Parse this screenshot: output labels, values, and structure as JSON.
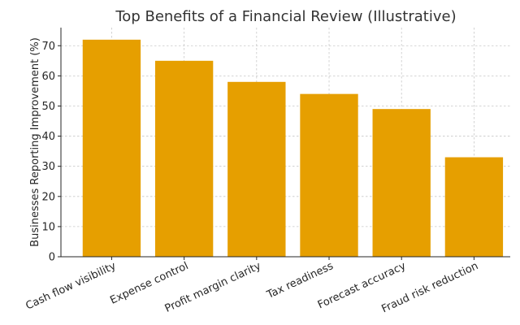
{
  "chart_data": {
    "type": "bar",
    "title": "Top Benefits of a Financial Review (Illustrative)",
    "xlabel": "",
    "ylabel": "Businesses Reporting Improvement (%)",
    "categories": [
      "Cash flow visibility",
      "Expense control",
      "Profit margin clarity",
      "Tax readiness",
      "Forecast accuracy",
      "Fraud risk reduction"
    ],
    "values": [
      72,
      65,
      58,
      54,
      49,
      33
    ],
    "ylim": [
      0,
      76
    ],
    "yticks": [
      0,
      10,
      20,
      30,
      40,
      50,
      60,
      70
    ],
    "grid": true,
    "bar_color": "#E69F00",
    "text_color": "#262626",
    "title_color": "#333333",
    "grid_color": "#b0b0b0"
  }
}
